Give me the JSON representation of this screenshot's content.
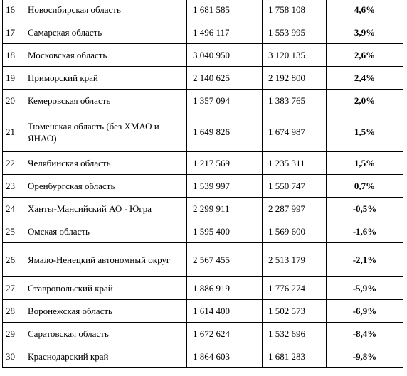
{
  "table": {
    "rows": [
      [
        "16",
        "Новосибирская область",
        "1 681 585",
        "1 758 108",
        "4,6%"
      ],
      [
        "17",
        "Самарская область",
        "1 496 117",
        "1 553 995",
        "3,9%"
      ],
      [
        "18",
        "Московская область",
        "3 040 950",
        "3 120 135",
        "2,6%"
      ],
      [
        "19",
        "Приморский край",
        "2 140 625",
        "2 192 800",
        "2,4%"
      ],
      [
        "20",
        "Кемеровская область",
        "1 357 094",
        "1 383 765",
        "2,0%"
      ],
      [
        "21",
        "Тюменская область (без ХМАО и ЯНАО)",
        "1 649 826",
        "1 674 987",
        "1,5%"
      ],
      [
        "22",
        "Челябинская область",
        "1 217 569",
        "1 235 311",
        "1,5%"
      ],
      [
        "23",
        "Оренбургская область",
        "1 539 997",
        "1 550 747",
        "0,7%"
      ],
      [
        "24",
        "Ханты-Мансийский АО - Югра",
        "2 299 911",
        "2 287 997",
        "-0,5%"
      ],
      [
        "25",
        "Омская область",
        "1 595 400",
        "1 569 600",
        "-1,6%"
      ],
      [
        "26",
        "Ямало-Ненецкий автономный округ",
        "2 567 455",
        "2 513 179",
        "-2,1%"
      ],
      [
        "27",
        "Ставропольский край",
        "1 886 919",
        "1 776 274",
        "-5,9%"
      ],
      [
        "28",
        "Воронежская область",
        "1 614 400",
        "1 502 573",
        "-6,9%"
      ],
      [
        "29",
        "Саратовская область",
        "1 672 624",
        "1 532 696",
        "-8,4%"
      ],
      [
        "30",
        "Краснодарский край",
        "1 864 603",
        "1 681 283",
        "-9,8%"
      ]
    ]
  }
}
